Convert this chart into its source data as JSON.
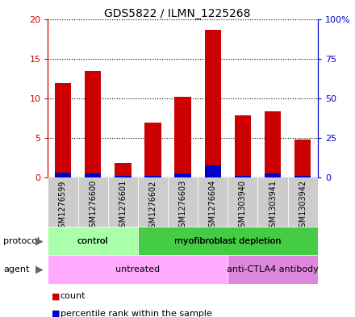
{
  "title": "GDS5822 / ILMN_1225268",
  "samples": [
    "GSM1276599",
    "GSM1276600",
    "GSM1276601",
    "GSM1276602",
    "GSM1276603",
    "GSM1276604",
    "GSM1303940",
    "GSM1303941",
    "GSM1303942"
  ],
  "counts": [
    11.9,
    13.4,
    1.8,
    6.9,
    10.2,
    18.6,
    7.8,
    8.4,
    4.8
  ],
  "percentile_ranks": [
    3.3,
    2.6,
    0.9,
    1.1,
    2.4,
    7.9,
    0.9,
    2.6,
    1.3
  ],
  "ylim_left": [
    0,
    20
  ],
  "ylim_right": [
    0,
    100
  ],
  "yticks_left": [
    0,
    5,
    10,
    15,
    20
  ],
  "yticks_right": [
    0,
    25,
    50,
    75,
    100
  ],
  "ytick_labels_left": [
    "0",
    "5",
    "10",
    "15",
    "20"
  ],
  "ytick_labels_right": [
    "0",
    "25",
    "50",
    "75",
    "100%"
  ],
  "left_axis_color": "#cc0000",
  "right_axis_color": "#0000cc",
  "bar_color": "#cc0000",
  "percentile_color": "#0000cc",
  "protocol_groups": [
    {
      "label": "control",
      "start": 0,
      "end": 3,
      "color": "#aaffaa"
    },
    {
      "label": "myofibroblast depletion",
      "start": 3,
      "end": 9,
      "color": "#44cc44"
    }
  ],
  "agent_groups": [
    {
      "label": "untreated",
      "start": 0,
      "end": 6,
      "color": "#ffaaff"
    },
    {
      "label": "anti-CTLA4 antibody",
      "start": 6,
      "end": 9,
      "color": "#dd88dd"
    }
  ],
  "legend_count_label": "count",
  "legend_percentile_label": "percentile rank within the sample",
  "protocol_label": "protocol",
  "agent_label": "agent",
  "tick_bg_color": "#cccccc",
  "right_ytick_labels": [
    "0",
    "25",
    "50",
    "75",
    "100%"
  ]
}
